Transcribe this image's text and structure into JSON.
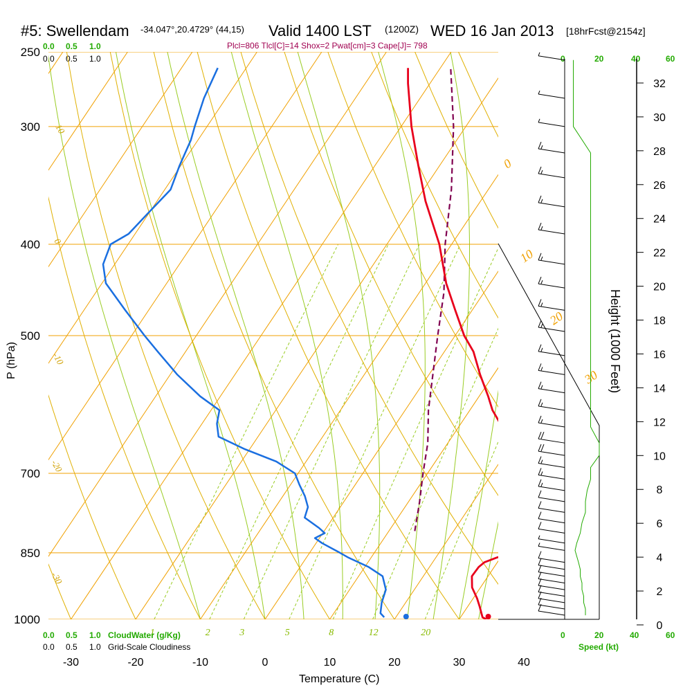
{
  "header": {
    "station": "#5: Swellendam",
    "coords": "-34.047°,20.4729° (44,15)",
    "valid": "Valid 1400 LST",
    "zulu": "(1200Z)",
    "date": "WED 16 Jan 2013",
    "forecast": "[18hrFcst@2154z]",
    "params": "Plcl=806 Tlcl[C]=14 Shox=2 Pwat[cm]=3 Cape[J]= 798"
  },
  "legend": {
    "cloudwater_scale": [
      "0.0",
      "0.5",
      "1.0"
    ],
    "cloudiness_scale": [
      "0.0",
      "0.5",
      "1.0"
    ],
    "cloudwater_label": "CloudWater (g/Kg)",
    "cloudiness_label": "Grid-Scale Cloudiness",
    "speed_label": "Speed (kt)",
    "speed_ticks": [
      "0",
      "20",
      "40",
      "60"
    ]
  },
  "colors": {
    "temperature": "#e8001c",
    "dewpoint": "#1a6fe0",
    "parcel": "#800050",
    "isotherm": "#f0a000",
    "dry_adiabat": "#e0b000",
    "moist_adiabat": "#99cc22",
    "mixing_ratio": "#99cc22",
    "green_text": "#22aa00"
  },
  "chart_data": {
    "type": "line",
    "title": "#5: Swellendam Valid 1400 LST (1200Z) WED 16 Jan 2013",
    "xlabel": "Temperature (C)",
    "ylabel": "P (hPa)",
    "y2label": "Height (1000 Feet)",
    "xlim": [
      -34,
      36
    ],
    "ylim": [
      1000,
      250
    ],
    "x_ticks": [
      -30,
      -20,
      -10,
      0,
      10,
      20,
      30,
      40
    ],
    "p_ticks": [
      1000,
      850,
      700,
      500,
      400,
      300,
      250
    ],
    "height_ticks": [
      0,
      2,
      4,
      6,
      8,
      10,
      12,
      14,
      16,
      18,
      20,
      22,
      24,
      26,
      28,
      30,
      32
    ],
    "isotherm_labels": [
      "10",
      "0",
      "-10",
      "-20",
      "-30",
      "0",
      "10",
      "20",
      "30"
    ],
    "mixing_ratio_labels": [
      "1",
      "2",
      "3",
      "5",
      "8",
      "12",
      "20"
    ],
    "series": [
      {
        "name": "Temperature",
        "p": [
          1000,
          995,
          985,
          970,
          950,
          925,
          900,
          880,
          870,
          860,
          850,
          830,
          800,
          770,
          740,
          700,
          660,
          620,
          600,
          580,
          550,
          520,
          500,
          470,
          440,
          400,
          360,
          330,
          300,
          270,
          260
        ],
        "t": [
          34.2,
          33.4,
          32.8,
          31.9,
          30.6,
          28.7,
          27.5,
          27.6,
          28.0,
          29.4,
          31.4,
          32.3,
          31.8,
          29.7,
          27.9,
          24.2,
          19.9,
          16.1,
          13.5,
          11.4,
          7.9,
          4.5,
          1.4,
          -2.6,
          -6.8,
          -11.9,
          -18.5,
          -23.3,
          -28.4,
          -33.4,
          -35.0
        ]
      },
      {
        "name": "Dewpoint",
        "p": [
          995,
          985,
          960,
          930,
          900,
          880,
          860,
          850,
          830,
          820,
          810,
          800,
          780,
          760,
          740,
          720,
          700,
          680,
          660,
          640,
          620,
          600,
          580,
          550,
          520,
          500,
          470,
          440,
          420,
          400,
          390,
          370,
          350,
          330,
          310,
          300,
          280,
          260
        ],
        "td": [
          18.2,
          17.2,
          16.3,
          15.6,
          13.7,
          10.6,
          6.5,
          4.7,
          0.9,
          -0.7,
          0.3,
          -1.1,
          -4.4,
          -5.0,
          -6.6,
          -8.6,
          -10.5,
          -14.6,
          -20.7,
          -26.1,
          -27.7,
          -28.7,
          -33.1,
          -38.9,
          -44.3,
          -48.0,
          -53.6,
          -59.4,
          -61.8,
          -62.7,
          -61.0,
          -60.1,
          -59.1,
          -60.2,
          -61.1,
          -61.9,
          -63.4,
          -64.4
        ]
      },
      {
        "name": "Parcel",
        "p": [
          806,
          750,
          700,
          650,
          600,
          550,
          500,
          450,
          400,
          350,
          300,
          260
        ],
        "t": [
          14.0,
          11.7,
          9.3,
          6.9,
          3.6,
          0.6,
          -2.7,
          -6.2,
          -11.0,
          -15.7,
          -21.9,
          -28.4
        ]
      }
    ],
    "surface_temp": 34.5,
    "surface_dewpoint": 21.8,
    "wind_barbs": [
      {
        "p": 990,
        "speed": 12
      },
      {
        "p": 975,
        "speed": 12
      },
      {
        "p": 960,
        "speed": 11
      },
      {
        "p": 945,
        "speed": 11
      },
      {
        "p": 930,
        "speed": 10
      },
      {
        "p": 915,
        "speed": 10
      },
      {
        "p": 900,
        "speed": 9
      },
      {
        "p": 885,
        "speed": 9
      },
      {
        "p": 870,
        "speed": 8
      },
      {
        "p": 845,
        "speed": 6
      },
      {
        "p": 830,
        "speed": 7
      },
      {
        "p": 810,
        "speed": 9
      },
      {
        "p": 790,
        "speed": 10
      },
      {
        "p": 770,
        "speed": 12
      },
      {
        "p": 750,
        "speed": 12
      },
      {
        "p": 730,
        "speed": 13
      },
      {
        "p": 710,
        "speed": 15
      },
      {
        "p": 690,
        "speed": 15
      },
      {
        "p": 670,
        "speed": 20
      },
      {
        "p": 650,
        "speed": 20
      },
      {
        "p": 625,
        "speed": 15
      },
      {
        "p": 600,
        "speed": 15
      },
      {
        "p": 575,
        "speed": 15
      },
      {
        "p": 550,
        "speed": 15
      },
      {
        "p": 525,
        "speed": 15
      },
      {
        "p": 495,
        "speed": 15
      },
      {
        "p": 470,
        "speed": 15
      },
      {
        "p": 445,
        "speed": 15
      },
      {
        "p": 420,
        "speed": 15
      },
      {
        "p": 390,
        "speed": 15
      },
      {
        "p": 365,
        "speed": 15
      },
      {
        "p": 340,
        "speed": 15
      },
      {
        "p": 320,
        "speed": 15
      },
      {
        "p": 300,
        "speed": 5
      },
      {
        "p": 280,
        "speed": 5
      },
      {
        "p": 255,
        "speed": 5
      }
    ]
  }
}
